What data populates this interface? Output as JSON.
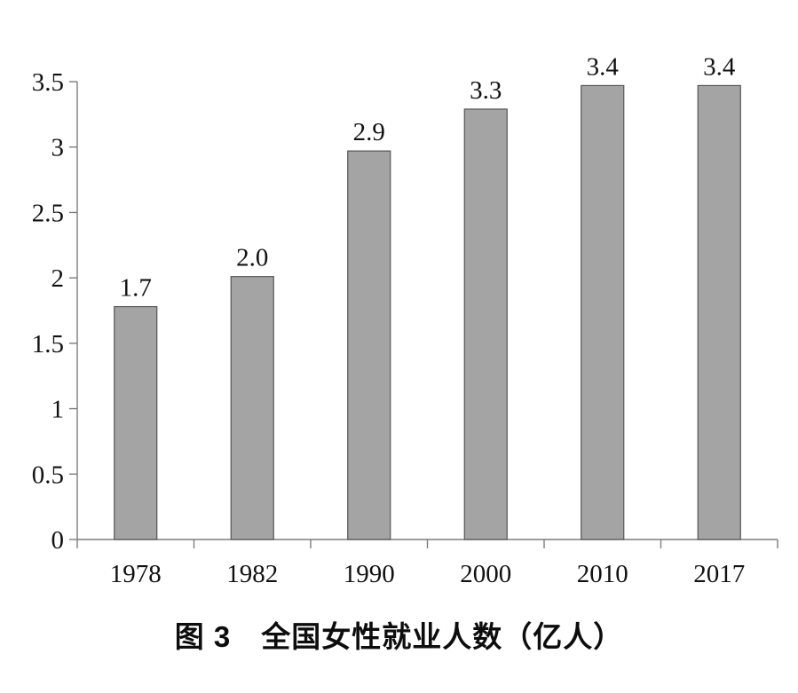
{
  "chart_data": {
    "type": "bar",
    "title": "图 3　全国女性就业人数（亿人）",
    "categories": [
      "1978",
      "1982",
      "1990",
      "2000",
      "2010",
      "2017"
    ],
    "values": [
      1.7,
      2.0,
      2.9,
      3.3,
      3.4,
      3.4
    ],
    "value_labels": [
      "1.7",
      "2.0",
      "2.9",
      "3.3",
      "3.4",
      "3.4"
    ],
    "bar_top_estimates": [
      1.78,
      2.01,
      2.97,
      3.29,
      3.47,
      3.47
    ],
    "xlabel": "",
    "ylabel": "",
    "ylim": [
      0,
      3.5
    ],
    "ytick_step": 0.5,
    "ytick_labels": [
      "0",
      "0.5",
      "1",
      "1.5",
      "2",
      "2.5",
      "3",
      "3.5"
    ],
    "grid": false,
    "legend": false,
    "colors": {
      "bar_fill": "#a4a4a4",
      "bar_border": "#565656",
      "axis": "#7d7d7d",
      "text": "#111111",
      "background": "#ffffff"
    }
  }
}
